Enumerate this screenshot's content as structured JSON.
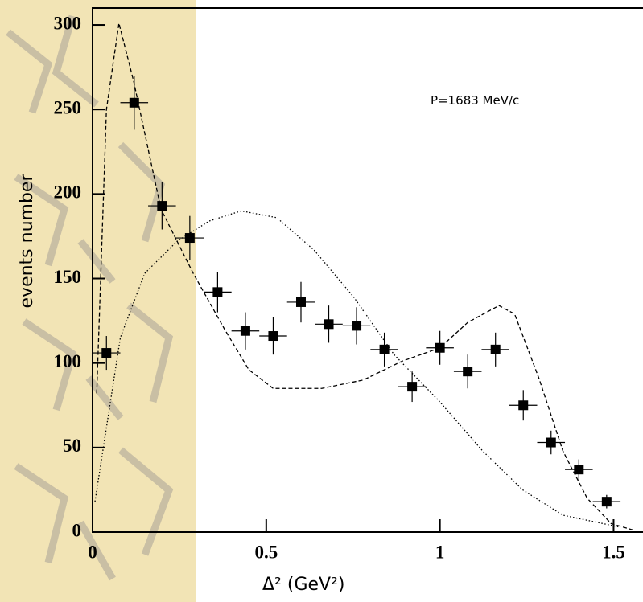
{
  "chart_data": {
    "type": "scatter",
    "annotation": "P=1683 MeV/c",
    "x_label": "Δ² (GeV²)",
    "y_label": "events number",
    "xlim": [
      0,
      1.58
    ],
    "ylim": [
      0,
      310
    ],
    "xticks": [
      0,
      0.5,
      1,
      1.5
    ],
    "yticks": [
      0,
      50,
      100,
      150,
      200,
      250,
      300
    ],
    "series": [
      {
        "type": "errorbar",
        "color": "#000000",
        "x": [
          0.04,
          0.12,
          0.2,
          0.28,
          0.36,
          0.44,
          0.52,
          0.6,
          0.68,
          0.76,
          0.84,
          0.92,
          1.0,
          1.08,
          1.16,
          1.24,
          1.32,
          1.4,
          1.48
        ],
        "values": [
          106,
          254,
          193,
          174,
          142,
          119,
          116,
          136,
          123,
          122,
          108,
          86,
          109,
          95,
          108,
          75,
          53,
          37,
          18
        ],
        "xerr": [
          0.04,
          0.04,
          0.04,
          0.04,
          0.04,
          0.04,
          0.04,
          0.04,
          0.04,
          0.04,
          0.04,
          0.04,
          0.04,
          0.04,
          0.04,
          0.04,
          0.04,
          0.04,
          0.04
        ],
        "yerr": [
          10,
          16,
          14,
          13,
          12,
          11,
          11,
          12,
          11,
          11,
          10,
          9,
          10,
          10,
          10,
          9,
          7,
          6,
          4
        ]
      },
      {
        "type": "line",
        "style": "dashed",
        "color": "#000000",
        "x": [
          0.012,
          0.04,
          0.076,
          0.118,
          0.197,
          0.29,
          0.38,
          0.45,
          0.52,
          0.66,
          0.78,
          0.89,
          1.0,
          1.08,
          1.17,
          1.215,
          1.285,
          1.354,
          1.424,
          1.493,
          1.56
        ],
        "values": [
          82,
          250,
          301,
          267,
          191,
          153,
          120,
          96,
          85,
          85,
          90,
          101,
          109,
          124,
          134,
          129,
          91,
          48,
          20,
          5,
          1
        ]
      },
      {
        "type": "line",
        "style": "dotted",
        "color": "#000000",
        "x": [
          0.007,
          0.08,
          0.15,
          0.243,
          0.336,
          0.428,
          0.53,
          0.637,
          0.752,
          0.868,
          1.0,
          1.123,
          1.238,
          1.354,
          1.447,
          1.516
        ],
        "values": [
          18,
          115,
          153,
          172,
          184,
          190,
          186,
          167,
          139,
          105,
          77,
          48,
          25,
          10,
          6,
          3
        ]
      }
    ]
  }
}
